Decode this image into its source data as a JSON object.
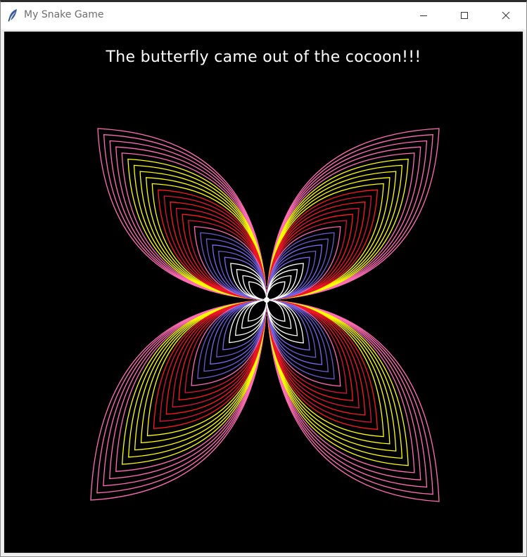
{
  "window": {
    "title": "My Snake Game",
    "icon": "feather-icon",
    "controls": {
      "minimize_icon": "minimize-icon",
      "maximize_icon": "maximize-icon",
      "close_icon": "close-icon"
    }
  },
  "game": {
    "message": "The butterfly came out of the cocoon!!!",
    "background_color": "#000000",
    "text_color": "#ffffff",
    "butterfly": {
      "ring_colors_outer_to_inner": [
        "#ff6eb4",
        "#ff6eb4",
        "#ff6eb4",
        "#ff6eb4",
        "#ff6eb4",
        "#ffff00",
        "#ffff00",
        "#ffff00",
        "#ffff00",
        "#ffff00",
        "#ff1a1a",
        "#dc143c",
        "#ff1a1a",
        "#dc143c",
        "#ff1a1a",
        "#dc143c",
        "#ff69b4",
        "#6a5acd",
        "#6a5acd",
        "#7b68ee",
        "#6a5acd",
        "#7b68ee",
        "#ffffff",
        "#ffffff",
        "#ffffff",
        "#ffffff"
      ]
    }
  }
}
